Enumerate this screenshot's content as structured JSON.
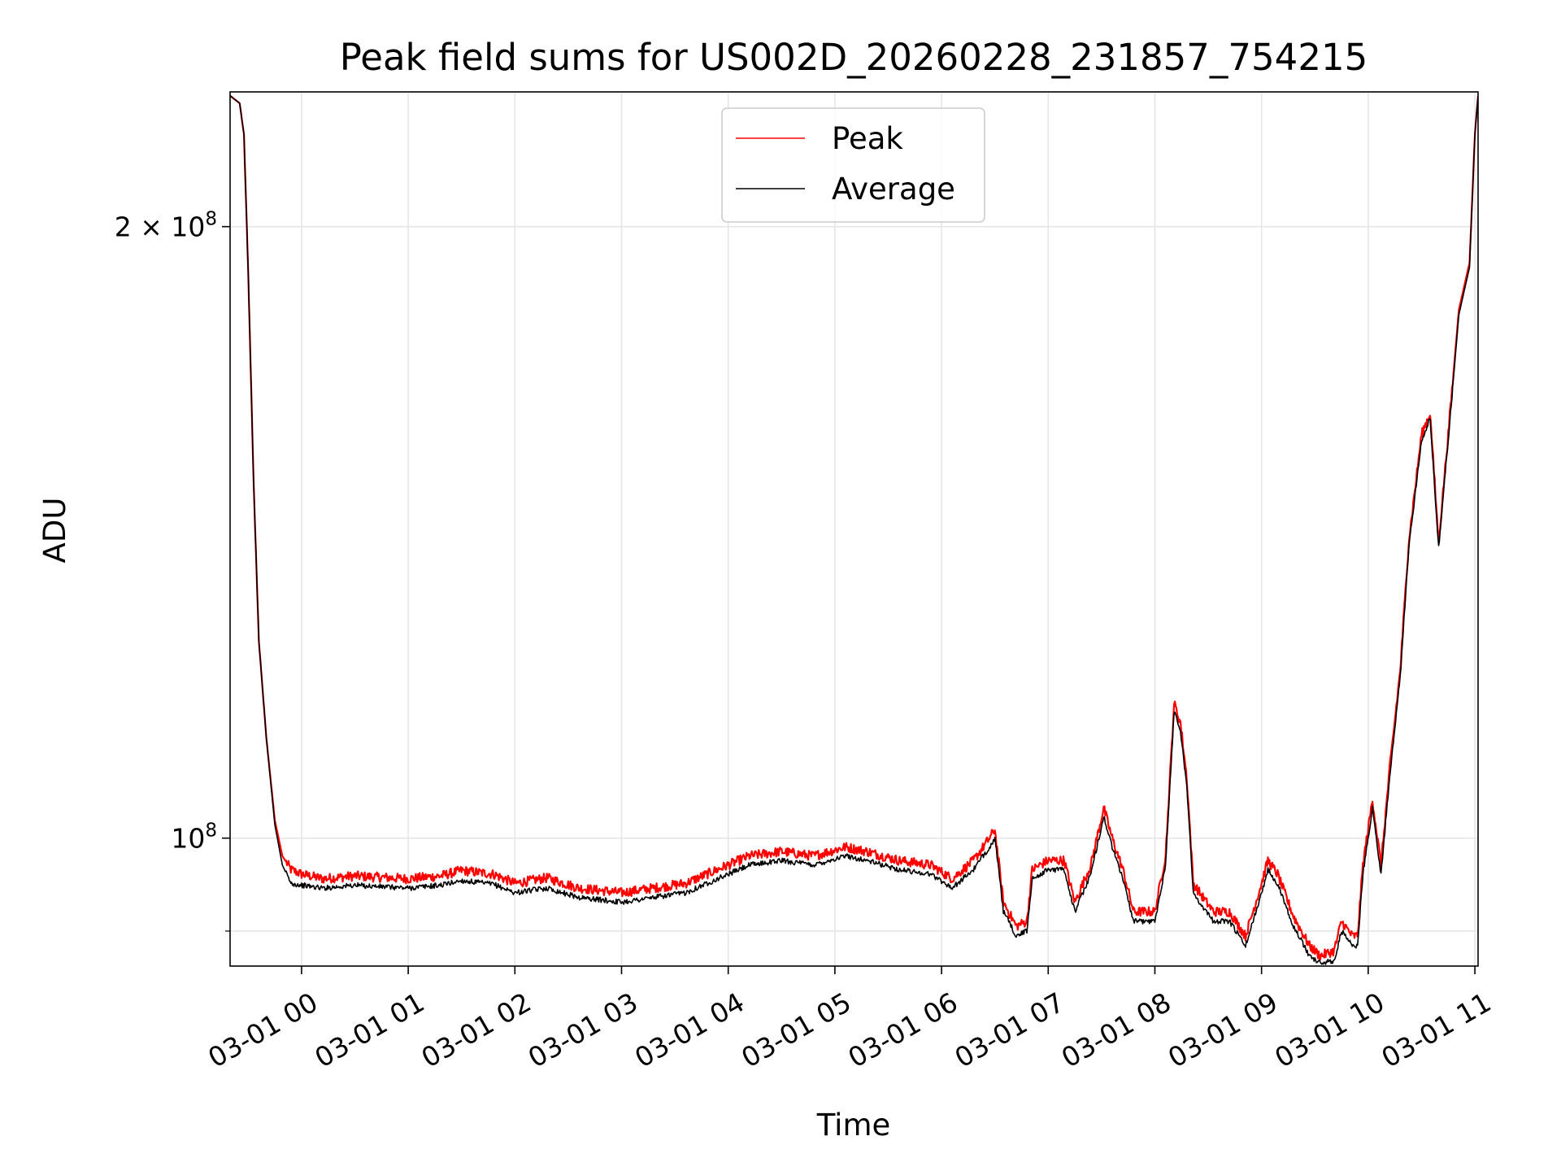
{
  "chart_data": {
    "type": "line",
    "title": "Peak field sums for US002D_20260228_231857_754215",
    "xlabel": "Time",
    "ylabel": "ADU",
    "x_unit": "hours after 03-01 00:00",
    "xlim": [
      -0.67,
      11.03
    ],
    "ylim": [
      86500000,
      233000000
    ],
    "y_scale": "log",
    "grid": true,
    "legend_position": "top-center",
    "x_ticks": [
      {
        "value": 0,
        "label": "03-01 00"
      },
      {
        "value": 1,
        "label": "03-01 01"
      },
      {
        "value": 2,
        "label": "03-01 02"
      },
      {
        "value": 3,
        "label": "03-01 03"
      },
      {
        "value": 4,
        "label": "03-01 04"
      },
      {
        "value": 5,
        "label": "03-01 05"
      },
      {
        "value": 6,
        "label": "03-01 06"
      },
      {
        "value": 7,
        "label": "03-01 07"
      },
      {
        "value": 8,
        "label": "03-01 08"
      },
      {
        "value": 9,
        "label": "03-01 09"
      },
      {
        "value": 10,
        "label": "03-01 10"
      },
      {
        "value": 11,
        "label": "03-01 11"
      }
    ],
    "y_ticks_major": [
      {
        "value": 100000000,
        "base": "10",
        "exp": "8",
        "coef": ""
      },
      {
        "value": 200000000,
        "base": "10",
        "exp": "8",
        "coef": "2 × "
      }
    ],
    "y_ticks_minor": [
      90000000
    ],
    "series": [
      {
        "name": "Peak",
        "color": "#ff0000",
        "points": [
          [
            -0.67,
            232000000
          ],
          [
            -0.58,
            230000000
          ],
          [
            -0.54,
            222000000
          ],
          [
            -0.5,
            190000000
          ],
          [
            -0.45,
            150000000
          ],
          [
            -0.4,
            125000000
          ],
          [
            -0.33,
            112000000
          ],
          [
            -0.25,
            102000000
          ],
          [
            -0.18,
            98000000
          ],
          [
            -0.1,
            96500000
          ],
          [
            0.0,
            96000000
          ],
          [
            0.2,
            95500000
          ],
          [
            0.5,
            95800000
          ],
          [
            1.0,
            95500000
          ],
          [
            1.3,
            95800000
          ],
          [
            1.5,
            96400000
          ],
          [
            1.8,
            96000000
          ],
          [
            2.0,
            95000000
          ],
          [
            2.3,
            95600000
          ],
          [
            2.6,
            94500000
          ],
          [
            3.0,
            94000000
          ],
          [
            3.3,
            94500000
          ],
          [
            3.6,
            95000000
          ],
          [
            3.9,
            96500000
          ],
          [
            4.2,
            98000000
          ],
          [
            4.5,
            98500000
          ],
          [
            4.8,
            98000000
          ],
          [
            5.1,
            99000000
          ],
          [
            5.3,
            98500000
          ],
          [
            5.6,
            97500000
          ],
          [
            5.9,
            97000000
          ],
          [
            6.1,
            95500000
          ],
          [
            6.3,
            97500000
          ],
          [
            6.45,
            100000000
          ],
          [
            6.5,
            101000000
          ],
          [
            6.58,
            93000000
          ],
          [
            6.7,
            90500000
          ],
          [
            6.8,
            91000000
          ],
          [
            6.85,
            96500000
          ],
          [
            7.0,
            97500000
          ],
          [
            7.15,
            97500000
          ],
          [
            7.25,
            93000000
          ],
          [
            7.4,
            97000000
          ],
          [
            7.52,
            103500000
          ],
          [
            7.6,
            100000000
          ],
          [
            7.7,
            96500000
          ],
          [
            7.8,
            92000000
          ],
          [
            8.0,
            92000000
          ],
          [
            8.1,
            98000000
          ],
          [
            8.18,
            116500000
          ],
          [
            8.24,
            114000000
          ],
          [
            8.3,
            107000000
          ],
          [
            8.36,
            95000000
          ],
          [
            8.45,
            93500000
          ],
          [
            8.55,
            92000000
          ],
          [
            8.7,
            92000000
          ],
          [
            8.85,
            89500000
          ],
          [
            9.0,
            95000000
          ],
          [
            9.06,
            97500000
          ],
          [
            9.15,
            96000000
          ],
          [
            9.3,
            91500000
          ],
          [
            9.45,
            88500000
          ],
          [
            9.55,
            87500000
          ],
          [
            9.68,
            88000000
          ],
          [
            9.75,
            91000000
          ],
          [
            9.85,
            89500000
          ],
          [
            9.9,
            89500000
          ],
          [
            9.95,
            97000000
          ],
          [
            10.04,
            104500000
          ],
          [
            10.12,
            97000000
          ],
          [
            10.2,
            108000000
          ],
          [
            10.3,
            121000000
          ],
          [
            10.38,
            140000000
          ],
          [
            10.5,
            158000000
          ],
          [
            10.58,
            162000000
          ],
          [
            10.66,
            140000000
          ],
          [
            10.75,
            158000000
          ],
          [
            10.85,
            182000000
          ],
          [
            10.95,
            192000000
          ],
          [
            11.0,
            222000000
          ],
          [
            11.03,
            232000000
          ]
        ]
      },
      {
        "name": "Average",
        "color": "#000000",
        "points": [
          [
            -0.67,
            232000000
          ],
          [
            -0.58,
            230000000
          ],
          [
            -0.54,
            222000000
          ],
          [
            -0.5,
            190000000
          ],
          [
            -0.45,
            150000000
          ],
          [
            -0.4,
            125000000
          ],
          [
            -0.33,
            112000000
          ],
          [
            -0.25,
            101500000
          ],
          [
            -0.18,
            97000000
          ],
          [
            -0.1,
            95000000
          ],
          [
            0.0,
            94800000
          ],
          [
            0.2,
            94500000
          ],
          [
            0.5,
            94800000
          ],
          [
            1.0,
            94500000
          ],
          [
            1.3,
            94800000
          ],
          [
            1.5,
            95300000
          ],
          [
            1.8,
            94900000
          ],
          [
            2.0,
            94000000
          ],
          [
            2.3,
            94500000
          ],
          [
            2.6,
            93500000
          ],
          [
            3.0,
            93000000
          ],
          [
            3.3,
            93500000
          ],
          [
            3.6,
            94000000
          ],
          [
            3.9,
            95500000
          ],
          [
            4.2,
            97000000
          ],
          [
            4.5,
            97500000
          ],
          [
            4.8,
            97000000
          ],
          [
            5.1,
            98000000
          ],
          [
            5.3,
            97500000
          ],
          [
            5.6,
            96500000
          ],
          [
            5.9,
            96000000
          ],
          [
            6.1,
            94500000
          ],
          [
            6.3,
            96500000
          ],
          [
            6.45,
            99000000
          ],
          [
            6.5,
            100000000
          ],
          [
            6.58,
            92000000
          ],
          [
            6.7,
            89500000
          ],
          [
            6.8,
            90000000
          ],
          [
            6.85,
            95500000
          ],
          [
            7.0,
            96500000
          ],
          [
            7.15,
            96500000
          ],
          [
            7.25,
            92000000
          ],
          [
            7.4,
            96000000
          ],
          [
            7.52,
            102500000
          ],
          [
            7.6,
            99000000
          ],
          [
            7.7,
            95500000
          ],
          [
            7.8,
            91000000
          ],
          [
            8.0,
            91000000
          ],
          [
            8.1,
            97000000
          ],
          [
            8.18,
            115500000
          ],
          [
            8.24,
            113000000
          ],
          [
            8.3,
            106000000
          ],
          [
            8.36,
            94000000
          ],
          [
            8.45,
            92500000
          ],
          [
            8.55,
            91000000
          ],
          [
            8.7,
            91000000
          ],
          [
            8.85,
            88500000
          ],
          [
            9.0,
            94000000
          ],
          [
            9.06,
            96500000
          ],
          [
            9.15,
            95000000
          ],
          [
            9.3,
            90500000
          ],
          [
            9.45,
            87500000
          ],
          [
            9.55,
            86800000
          ],
          [
            9.68,
            87000000
          ],
          [
            9.75,
            90000000
          ],
          [
            9.85,
            88500000
          ],
          [
            9.9,
            88500000
          ],
          [
            9.95,
            96000000
          ],
          [
            10.04,
            103500000
          ],
          [
            10.12,
            96000000
          ],
          [
            10.2,
            107000000
          ],
          [
            10.3,
            120000000
          ],
          [
            10.38,
            139000000
          ],
          [
            10.5,
            157000000
          ],
          [
            10.58,
            161000000
          ],
          [
            10.66,
            139000000
          ],
          [
            10.75,
            157000000
          ],
          [
            10.85,
            181000000
          ],
          [
            10.95,
            191000000
          ],
          [
            11.0,
            222000000
          ],
          [
            11.03,
            232000000
          ]
        ]
      }
    ]
  }
}
